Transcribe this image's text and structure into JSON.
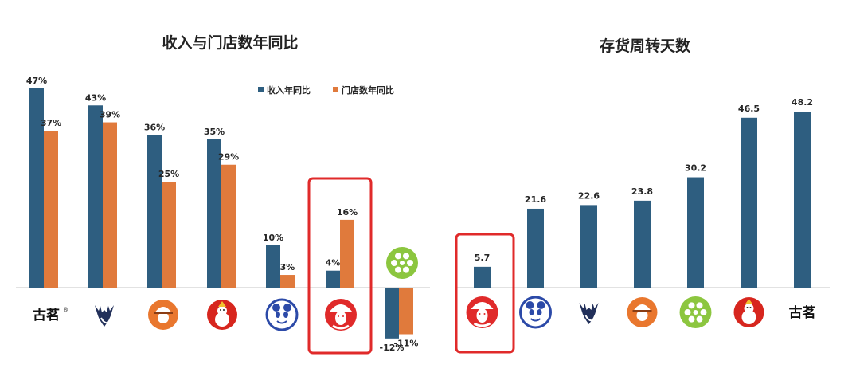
{
  "colors": {
    "revenue": "#2E5E80",
    "stores": "#E07A3C",
    "highlight": "#E02A2A",
    "axis": "#D9D9D9",
    "teal": "#2E5E80"
  },
  "chart_data": [
    {
      "type": "bar",
      "title": "收入与门店数年同比",
      "categories": [
        "guming",
        "deer-brand",
        "cap-girl-brand",
        "snowman-brand",
        "panda-brand",
        "opera-face-brand",
        "lime-brand"
      ],
      "series": [
        {
          "name": "收入年同比",
          "values": [
            47,
            43,
            36,
            35,
            10,
            4,
            -12
          ],
          "labels": [
            "47%",
            "43%",
            "36%",
            "35%",
            "10%",
            "4%",
            "-12%"
          ]
        },
        {
          "name": "门店数年同比",
          "values": [
            37,
            39,
            25,
            29,
            3,
            16,
            -11
          ],
          "labels": [
            "37%",
            "39%",
            "25%",
            "29%",
            "3%",
            "16%",
            "-11%"
          ]
        }
      ],
      "unit": "%",
      "legend": "top-right",
      "highlight_index": 5,
      "logo_text": {
        "guming": "古茗",
        "registered_mark": "®"
      },
      "ylim": [
        -12,
        47
      ]
    },
    {
      "type": "bar",
      "title": "存货周转天数",
      "categories": [
        "opera-face-brand",
        "panda-brand",
        "deer-brand",
        "cap-girl-brand",
        "lime-brand",
        "snowman-brand",
        "guming"
      ],
      "values": [
        5.7,
        21.6,
        22.6,
        23.8,
        30.2,
        46.5,
        48.2
      ],
      "labels": [
        "5.7",
        "21.6",
        "22.6",
        "23.8",
        "30.2",
        "46.5",
        "48.2"
      ],
      "highlight_index": 0,
      "logo_text": {
        "guming": "古茗"
      },
      "ylim": [
        0,
        48.2
      ]
    }
  ]
}
